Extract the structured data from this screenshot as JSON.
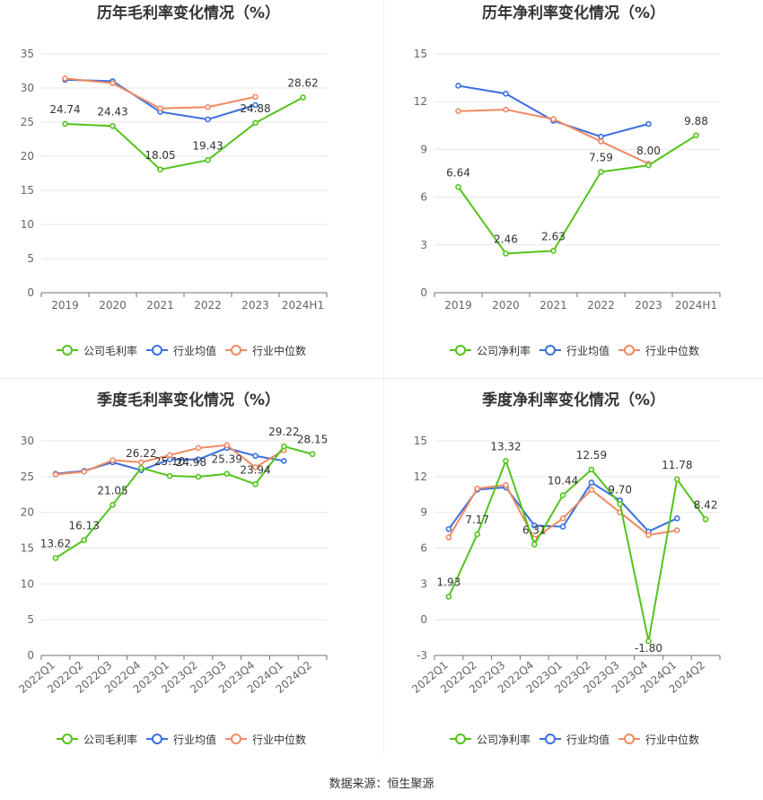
{
  "source": "数据来源：恒生聚源",
  "legend_labels": {
    "gross": "公司毛利率",
    "net": "公司净利率",
    "avg": "行业均值",
    "median": "行业中位数"
  },
  "colors": {
    "company": "#52c41a",
    "average": "#3b6fe0",
    "median": "#f08a62"
  },
  "chart_data": [
    {
      "type": "line",
      "title": "历年毛利率变化情况（%）",
      "categories": [
        "2019",
        "2020",
        "2021",
        "2022",
        "2023",
        "2024H1"
      ],
      "yticks": [
        0,
        5,
        10,
        15,
        20,
        25,
        30,
        35
      ],
      "ylim": [
        0,
        35
      ],
      "legend": [
        "公司毛利率",
        "行业均值",
        "行业中位数"
      ],
      "series": [
        {
          "name": "公司毛利率",
          "values": [
            24.74,
            24.43,
            18.05,
            19.43,
            24.88,
            28.62
          ]
        },
        {
          "name": "行业均值",
          "values": [
            31.2,
            31.0,
            26.5,
            25.4,
            27.5,
            null
          ]
        },
        {
          "name": "行业中位数",
          "values": [
            31.4,
            30.7,
            27.0,
            27.2,
            28.7,
            null
          ]
        }
      ]
    },
    {
      "type": "line",
      "title": "历年净利率变化情况（%）",
      "categories": [
        "2019",
        "2020",
        "2021",
        "2022",
        "2023",
        "2024H1"
      ],
      "yticks": [
        0,
        3,
        6,
        9,
        12,
        15
      ],
      "ylim": [
        0,
        15
      ],
      "legend": [
        "公司净利率",
        "行业均值",
        "行业中位数"
      ],
      "series": [
        {
          "name": "公司净利率",
          "values": [
            6.64,
            2.46,
            2.63,
            7.59,
            8.0,
            9.88
          ]
        },
        {
          "name": "行业均值",
          "values": [
            13.0,
            12.5,
            10.8,
            9.8,
            10.6,
            null
          ]
        },
        {
          "name": "行业中位数",
          "values": [
            11.4,
            11.5,
            10.9,
            9.5,
            8.1,
            null
          ]
        }
      ]
    },
    {
      "type": "line",
      "title": "季度毛利率变化情况（%）",
      "categories": [
        "2022Q1",
        "2022Q2",
        "2022Q3",
        "2022Q4",
        "2023Q1",
        "2023Q2",
        "2023Q3",
        "2023Q4",
        "2024Q1",
        "2024Q2"
      ],
      "yticks": [
        0,
        5,
        10,
        15,
        20,
        25,
        30
      ],
      "ylim": [
        0,
        30
      ],
      "legend": [
        "公司毛利率",
        "行业均值",
        "行业中位数"
      ],
      "series": [
        {
          "name": "公司毛利率",
          "values": [
            13.62,
            16.13,
            21.05,
            26.22,
            25.1,
            24.98,
            25.39,
            23.94,
            29.22,
            28.15
          ]
        },
        {
          "name": "行业均值",
          "values": [
            25.4,
            25.8,
            27.0,
            25.9,
            27.4,
            27.4,
            29.0,
            27.9,
            27.2,
            null
          ]
        },
        {
          "name": "行业中位数",
          "values": [
            25.3,
            25.7,
            27.3,
            27.0,
            28.0,
            29.0,
            29.4,
            26.3,
            28.7,
            null
          ]
        }
      ]
    },
    {
      "type": "line",
      "title": "季度净利率变化情况（%）",
      "categories": [
        "2022Q1",
        "2022Q2",
        "2022Q3",
        "2022Q4",
        "2023Q1",
        "2023Q2",
        "2023Q3",
        "2023Q4",
        "2024Q1",
        "2024Q2"
      ],
      "yticks": [
        -3,
        0,
        3,
        6,
        9,
        12,
        15
      ],
      "ylim": [
        -3,
        15
      ],
      "legend": [
        "公司净利率",
        "行业均值",
        "行业中位数"
      ],
      "series": [
        {
          "name": "公司净利率",
          "values": [
            1.93,
            7.17,
            13.32,
            6.31,
            10.44,
            12.59,
            9.7,
            -1.8,
            11.78,
            8.42
          ]
        },
        {
          "name": "行业均值",
          "values": [
            7.6,
            10.9,
            11.1,
            7.9,
            7.8,
            11.5,
            10.0,
            7.4,
            8.5,
            null
          ]
        },
        {
          "name": "行业中位数",
          "values": [
            6.9,
            11.0,
            11.3,
            6.8,
            8.5,
            10.9,
            9.0,
            7.1,
            7.5,
            null
          ]
        }
      ]
    }
  ]
}
